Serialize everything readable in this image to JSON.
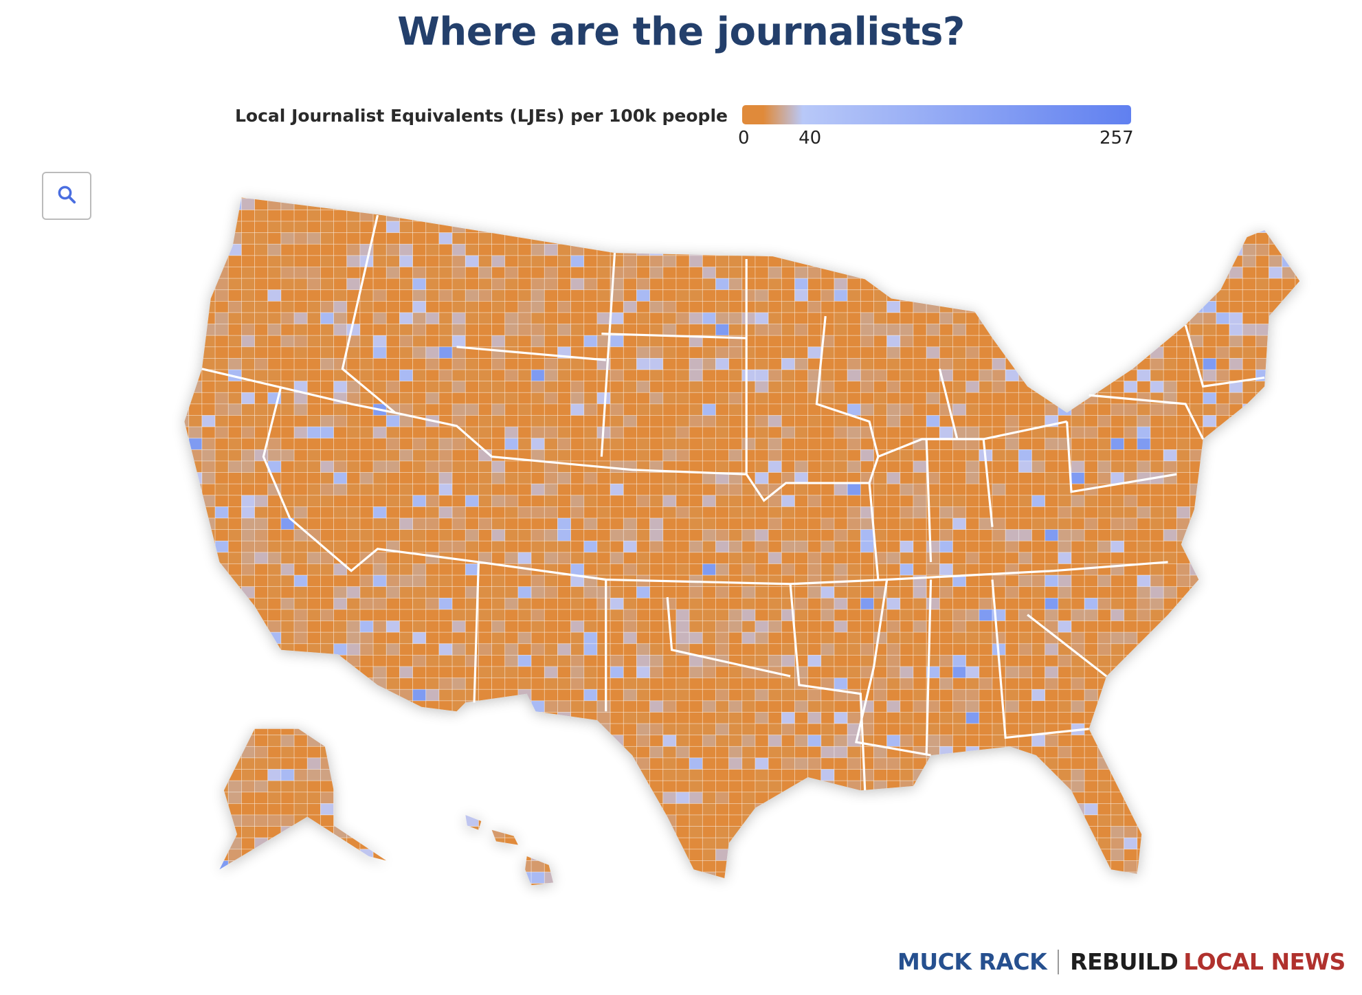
{
  "title": "Where are the journalists?",
  "legend": {
    "label": "Local Journalist Equivalents (LJEs) per 100k people",
    "ticks": [
      "0",
      "40",
      "257"
    ],
    "min": 0,
    "mid": 40,
    "max": 257,
    "colors": {
      "low": "#e08a3a",
      "mid": "#b8c8f8",
      "high": "#6080f0"
    }
  },
  "controls": {
    "search_icon": "search-icon"
  },
  "map": {
    "subject": "US counties",
    "palette": [
      "#e08a3a",
      "#dc8f45",
      "#d59a6c",
      "#cfa282",
      "#c8b4bc",
      "#bfc5ef",
      "#a9baf4",
      "#7f9bf2"
    ]
  },
  "footer": {
    "brand1": "MUCK RACK",
    "brand2a": "REBUILD",
    "brand2b": "LOCAL NEWS"
  }
}
